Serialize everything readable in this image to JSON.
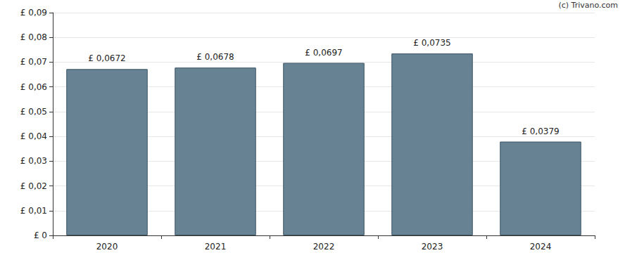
{
  "chart_data": {
    "type": "bar",
    "categories": [
      "2020",
      "2021",
      "2022",
      "2023",
      "2024"
    ],
    "values": [
      0.0672,
      0.0678,
      0.0697,
      0.0735,
      0.0379
    ],
    "value_labels": [
      "£ 0,0672",
      "£ 0,0678",
      "£ 0,0697",
      "£ 0,0735",
      "£ 0,0379"
    ],
    "color": "#668293",
    "ylim": [
      0,
      0.09
    ],
    "yticks": [
      {
        "value": 0,
        "label": "£ 0"
      },
      {
        "value": 0.01,
        "label": "£ 0,01"
      },
      {
        "value": 0.02,
        "label": "£ 0,02"
      },
      {
        "value": 0.03,
        "label": "£ 0,03"
      },
      {
        "value": 0.04,
        "label": "£ 0,04"
      },
      {
        "value": 0.05,
        "label": "£ 0,05"
      },
      {
        "value": 0.06,
        "label": "£ 0,06"
      },
      {
        "value": 0.07,
        "label": "£ 0,07"
      },
      {
        "value": 0.08,
        "label": "£ 0,08"
      },
      {
        "value": 0.09,
        "label": "£ 0,09"
      }
    ],
    "grid": true,
    "data_labels": true,
    "annotations": [
      "(c) Trivano.com"
    ]
  }
}
